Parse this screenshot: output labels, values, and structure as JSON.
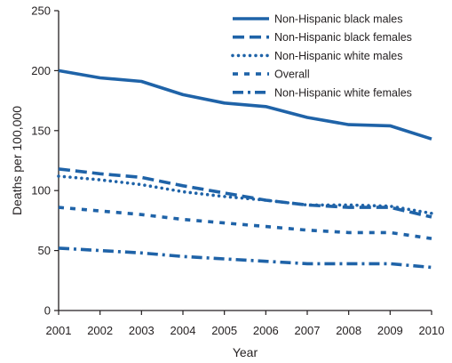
{
  "chart_data": {
    "type": "line",
    "title": "",
    "xlabel": "Year",
    "ylabel": "Deaths per 100,000",
    "x": [
      2001,
      2002,
      2003,
      2004,
      2005,
      2006,
      2007,
      2008,
      2009,
      2010
    ],
    "ylim": [
      0,
      250
    ],
    "yticks": [
      0,
      50,
      100,
      150,
      200,
      250
    ],
    "grid": false,
    "legend_position": "top-right",
    "line_color": "#1f63a8",
    "series": [
      {
        "name": "Non-Hispanic black males",
        "style": "solid",
        "values": [
          200,
          194,
          191,
          180,
          173,
          170,
          161,
          155,
          154,
          143
        ]
      },
      {
        "name": "Non-Hispanic black females",
        "style": "long-dash",
        "values": [
          118,
          114,
          111,
          104,
          98,
          92,
          88,
          86,
          86,
          78
        ]
      },
      {
        "name": "Non-Hispanic white males",
        "style": "dotted",
        "values": [
          112,
          109,
          105,
          99,
          95,
          92,
          88,
          88,
          87,
          81
        ]
      },
      {
        "name": "Overall",
        "style": "short-dash",
        "values": [
          86,
          83,
          80,
          76,
          73,
          70,
          67,
          65,
          65,
          60
        ]
      },
      {
        "name": "Non-Hispanic white females",
        "style": "dash-dot",
        "values": [
          52,
          50,
          48,
          45,
          43,
          41,
          39,
          39,
          39,
          36
        ]
      }
    ]
  }
}
